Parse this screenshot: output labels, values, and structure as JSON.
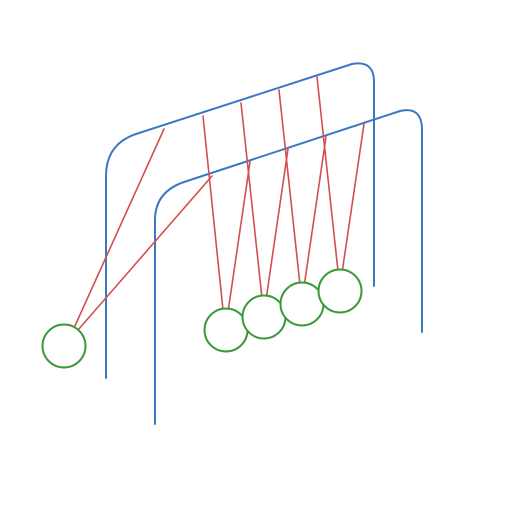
{
  "diagram": {
    "subject": "newtons-cradle",
    "ball_count": 5,
    "lifted_ball_count": 1,
    "colors": {
      "frame": "#3a78c4",
      "strings": "#d05050",
      "balls": "#3a9a3a",
      "background": "#ffffff"
    }
  }
}
